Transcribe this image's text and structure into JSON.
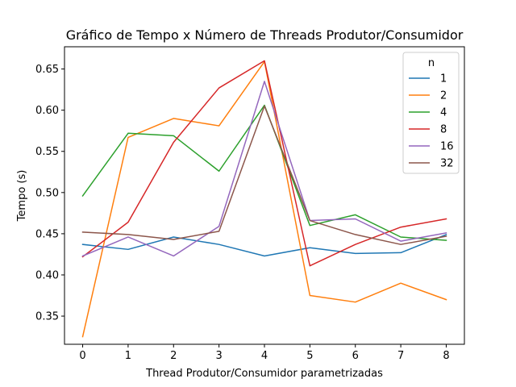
{
  "chart_data": {
    "type": "line",
    "title": "Gráfico de Tempo x Número de Threads Produtor/Consumidor",
    "xlabel": "Thread Produtor/Consumidor parametrizadas",
    "ylabel": "Tempo (s)",
    "x": [
      0,
      1,
      2,
      3,
      4,
      5,
      6,
      7,
      8
    ],
    "xticks": [
      "0",
      "1",
      "2",
      "3",
      "4",
      "5",
      "6",
      "7",
      "8"
    ],
    "yticks": [
      "0.35",
      "0.40",
      "0.45",
      "0.50",
      "0.55",
      "0.60",
      "0.65"
    ],
    "xlim": [
      -0.4,
      8.4
    ],
    "ylim": [
      0.3158,
      0.677
    ],
    "grid": false,
    "legend": {
      "title": "n",
      "placement": "top-right"
    },
    "series": [
      {
        "name": "1",
        "color": "#1f77b4",
        "values": [
          0.437,
          0.431,
          0.446,
          0.437,
          0.423,
          0.433,
          0.426,
          0.427,
          0.449
        ]
      },
      {
        "name": "2",
        "color": "#ff7f0e",
        "values": [
          0.325,
          0.567,
          0.59,
          0.581,
          0.659,
          0.375,
          0.367,
          0.39,
          0.37
        ]
      },
      {
        "name": "4",
        "color": "#2ca02c",
        "values": [
          0.496,
          0.572,
          0.569,
          0.526,
          0.606,
          0.46,
          0.473,
          0.446,
          0.442
        ]
      },
      {
        "name": "8",
        "color": "#d62728",
        "values": [
          0.422,
          0.464,
          0.561,
          0.627,
          0.66,
          0.411,
          0.437,
          0.458,
          0.468
        ]
      },
      {
        "name": "16",
        "color": "#9467bd",
        "values": [
          0.423,
          0.446,
          0.423,
          0.459,
          0.635,
          0.466,
          0.468,
          0.441,
          0.451
        ]
      },
      {
        "name": "32",
        "color": "#8c564b",
        "values": [
          0.452,
          0.449,
          0.443,
          0.453,
          0.605,
          0.466,
          0.449,
          0.437,
          0.447
        ]
      }
    ]
  }
}
